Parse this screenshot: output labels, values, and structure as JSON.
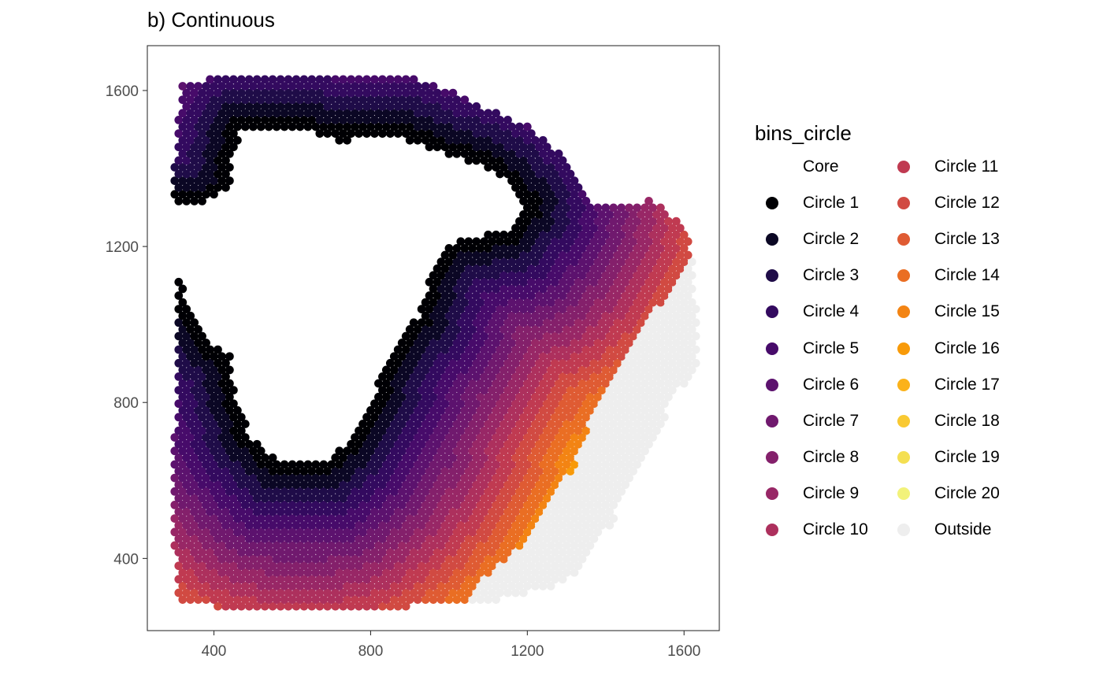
{
  "chart_data": {
    "type": "scatter",
    "title": "b) Continuous",
    "xlabel": "",
    "ylabel": "",
    "xlim": [
      230,
      1690
    ],
    "ylim": [
      215,
      1715
    ],
    "x_ticks": [
      400,
      800,
      1200,
      1600
    ],
    "y_ticks": [
      400,
      800,
      1200,
      1600
    ],
    "grid": false,
    "legend_position": "right",
    "legend": {
      "title": "bins_circle",
      "entries": [
        {
          "label": "Core",
          "color": "none"
        },
        {
          "label": "Circle 1",
          "color": "#000004"
        },
        {
          "label": "Circle 2",
          "color": "#0b0724"
        },
        {
          "label": "Circle 3",
          "color": "#1f0c48"
        },
        {
          "label": "Circle 4",
          "color": "#330a5f"
        },
        {
          "label": "Circle 5",
          "color": "#470b6a"
        },
        {
          "label": "Circle 6",
          "color": "#5c126e"
        },
        {
          "label": "Circle 7",
          "color": "#70196e"
        },
        {
          "label": "Circle 8",
          "color": "#84206b"
        },
        {
          "label": "Circle 9",
          "color": "#982766"
        },
        {
          "label": "Circle 10",
          "color": "#ad305d"
        },
        {
          "label": "Circle 11",
          "color": "#c03a51"
        },
        {
          "label": "Circle 12",
          "color": "#d14a42"
        },
        {
          "label": "Circle 13",
          "color": "#df5b33"
        },
        {
          "label": "Circle 14",
          "color": "#ea6e23"
        },
        {
          "label": "Circle 15",
          "color": "#f38413"
        },
        {
          "label": "Circle 16",
          "color": "#f89a09"
        },
        {
          "label": "Circle 17",
          "color": "#fbb21a"
        },
        {
          "label": "Circle 18",
          "color": "#f9c932"
        },
        {
          "label": "Circle 19",
          "color": "#f4df52"
        },
        {
          "label": "Circle 20",
          "color": "#f2f27a"
        },
        {
          "label": "Outside",
          "color": "#eeeeee"
        }
      ]
    },
    "regions": {
      "tissue_outline": [
        [
          318,
          1625
        ],
        [
          420,
          1630
        ],
        [
          840,
          1640
        ],
        [
          960,
          1620
        ],
        [
          1080,
          1560
        ],
        [
          1200,
          1510
        ],
        [
          1300,
          1420
        ],
        [
          1370,
          1310
        ],
        [
          1480,
          1300
        ],
        [
          1520,
          1325
        ],
        [
          1555,
          1290
        ],
        [
          1600,
          1255
        ],
        [
          1620,
          1180
        ],
        [
          1635,
          1000
        ],
        [
          1630,
          880
        ],
        [
          1580,
          820
        ],
        [
          1520,
          700
        ],
        [
          1470,
          600
        ],
        [
          1420,
          500
        ],
        [
          1340,
          380
        ],
        [
          1280,
          330
        ],
        [
          1120,
          290
        ],
        [
          1020,
          280
        ],
        [
          600,
          270
        ],
        [
          460,
          270
        ],
        [
          310,
          290
        ],
        [
          300,
          430
        ],
        [
          295,
          560
        ],
        [
          300,
          720
        ],
        [
          310,
          880
        ],
        [
          305,
          1100
        ],
        [
          290,
          1250
        ],
        [
          300,
          1420
        ],
        [
          308,
          1540
        ]
      ],
      "core_boundary": [
        [
          470,
          1500
        ],
        [
          560,
          1500
        ],
        [
          650,
          1490
        ],
        [
          720,
          1470
        ],
        [
          780,
          1475
        ],
        [
          880,
          1480
        ],
        [
          980,
          1440
        ],
        [
          1080,
          1410
        ],
        [
          1160,
          1360
        ],
        [
          1200,
          1300
        ],
        [
          1160,
          1245
        ],
        [
          1060,
          1220
        ],
        [
          1000,
          1210
        ],
        [
          960,
          1160
        ],
        [
          940,
          1080
        ],
        [
          920,
          1020
        ],
        [
          870,
          960
        ],
        [
          840,
          900
        ],
        [
          790,
          780
        ],
        [
          740,
          700
        ],
        [
          680,
          650
        ],
        [
          560,
          650
        ],
        [
          490,
          720
        ],
        [
          450,
          840
        ],
        [
          440,
          920
        ],
        [
          380,
          960
        ],
        [
          340,
          1040
        ],
        [
          280,
          1200
        ],
        [
          290,
          1300
        ],
        [
          400,
          1320
        ],
        [
          440,
          1350
        ],
        [
          445,
          1430
        ]
      ],
      "outside_boundary": [
        [
          1620,
          1180
        ],
        [
          1640,
          1000
        ],
        [
          1630,
          840
        ],
        [
          1580,
          800
        ],
        [
          1520,
          680
        ],
        [
          1470,
          560
        ],
        [
          1420,
          440
        ],
        [
          1400,
          330
        ],
        [
          1320,
          300
        ],
        [
          1200,
          285
        ],
        [
          1100,
          285
        ],
        [
          1040,
          290
        ],
        [
          1100,
          360
        ],
        [
          1180,
          430
        ],
        [
          1260,
          540
        ],
        [
          1320,
          640
        ],
        [
          1370,
          780
        ],
        [
          1420,
          880
        ],
        [
          1500,
          1000
        ],
        [
          1560,
          1080
        ]
      ],
      "band_count": 20
    }
  }
}
